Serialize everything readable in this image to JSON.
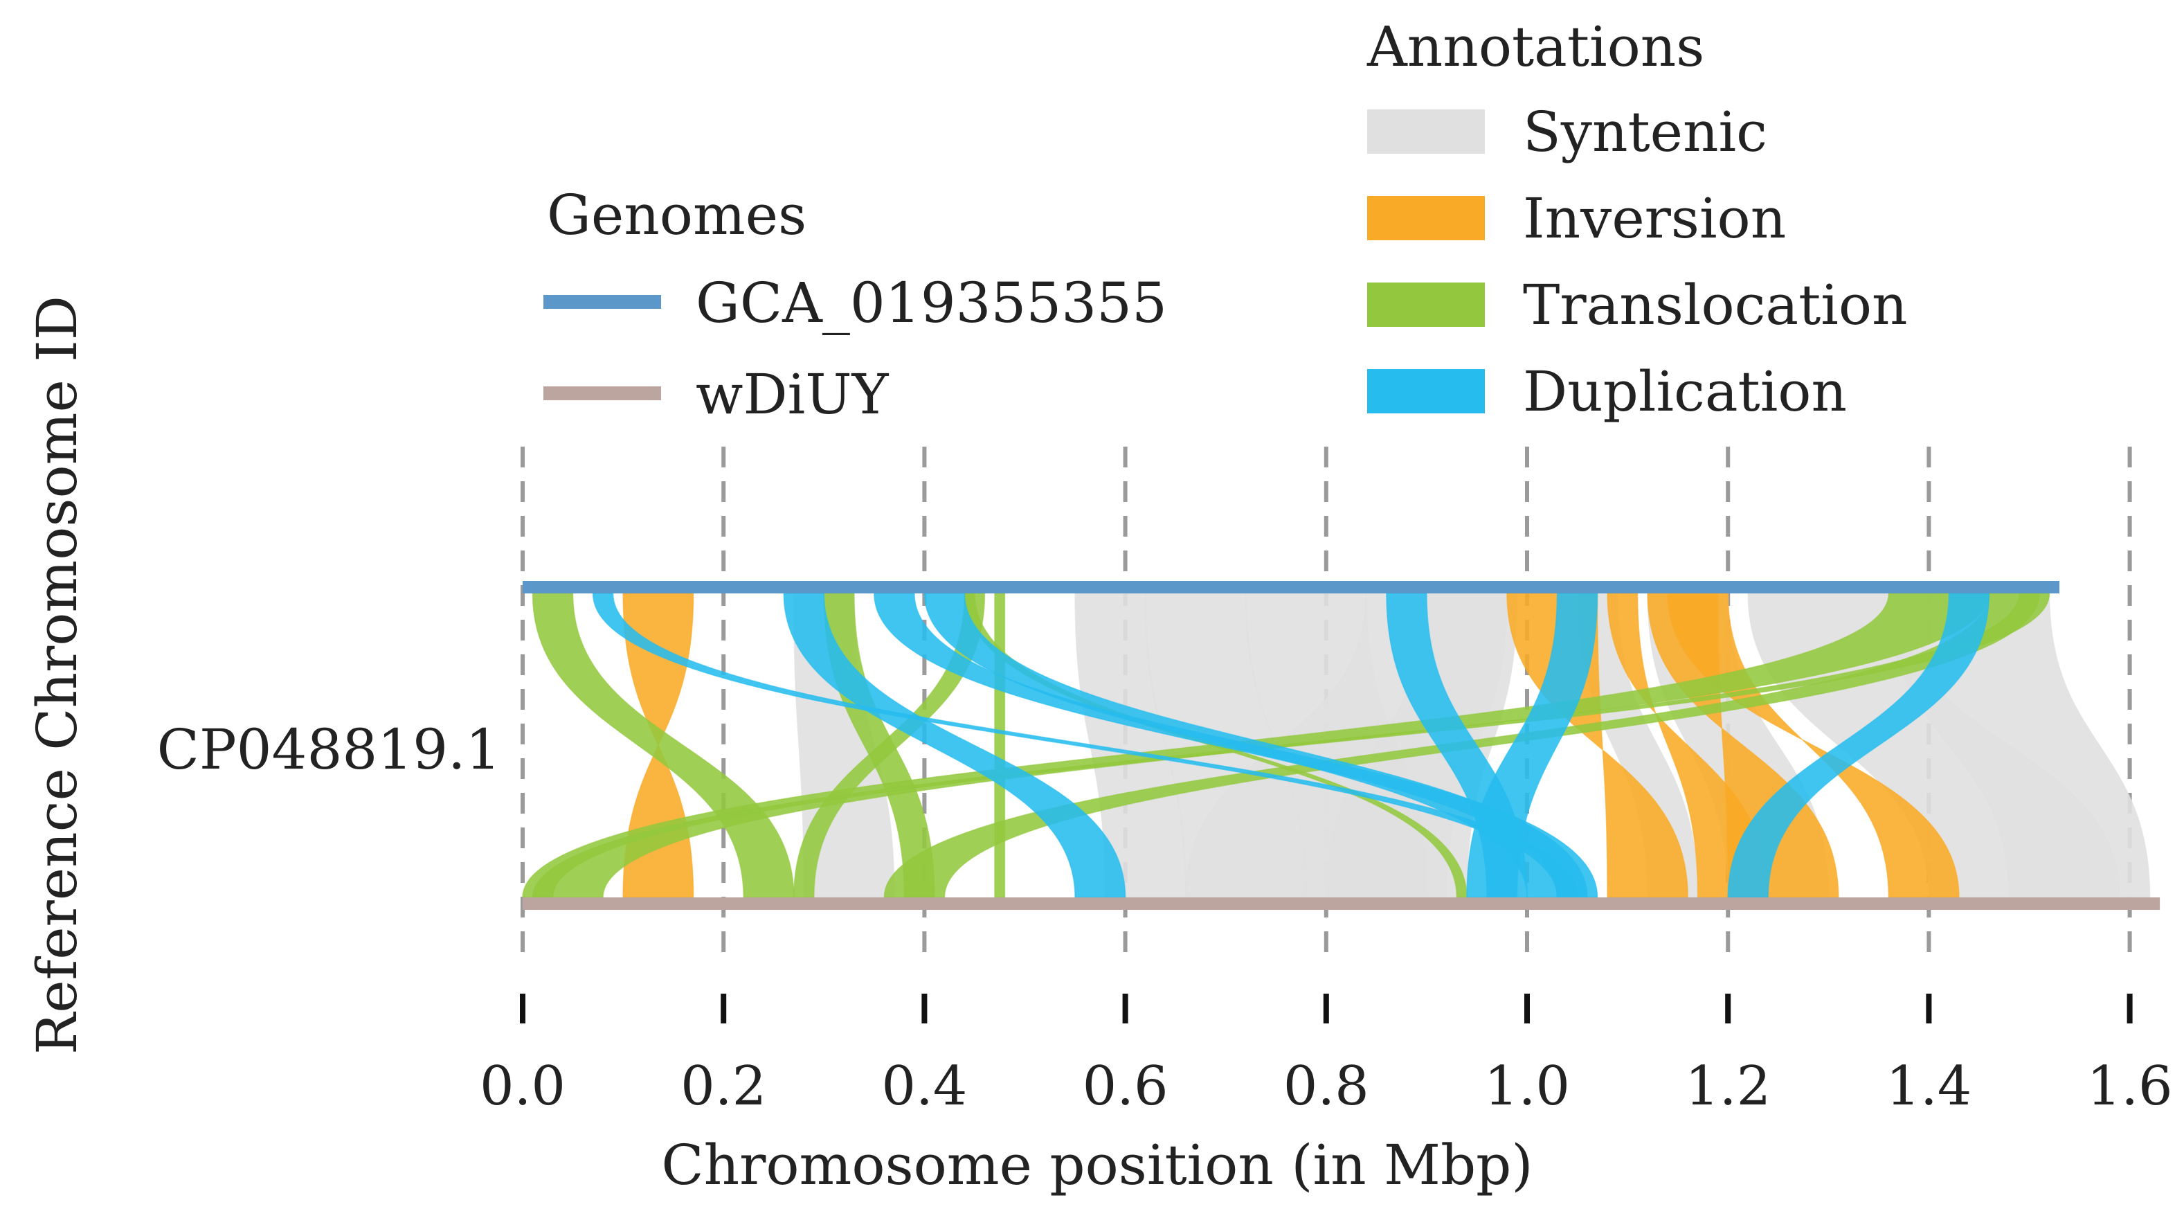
{
  "chart_data": {
    "type": "synteny",
    "xlabel": "Chromosome position (in Mbp)",
    "ylabel": "Reference Chromosome ID",
    "chromosome_id": "CP048819.1",
    "xlim": [
      0.0,
      1.62
    ],
    "ticks": [
      0.0,
      0.2,
      0.4,
      0.6,
      0.8,
      1.0,
      1.2,
      1.4,
      1.6
    ],
    "tick_labels": [
      "0.0",
      "0.2",
      "0.4",
      "0.6",
      "0.8",
      "1.0",
      "1.2",
      "1.4",
      "1.6"
    ],
    "genomes_legend": {
      "title": "Genomes",
      "items": [
        {
          "name": "GCA_019355355",
          "color": "#5b97c9",
          "length_mbp": 1.53
        },
        {
          "name": "wDiUY",
          "color": "#bca59e",
          "length_mbp": 1.63
        }
      ]
    },
    "annotations_legend": {
      "title": "Annotations",
      "items": [
        {
          "name": "Syntenic",
          "color": "#e0e0e0"
        },
        {
          "name": "Inversion",
          "color": "#f9aa26"
        },
        {
          "name": "Translocation",
          "color": "#93c83e"
        },
        {
          "name": "Duplication",
          "color": "#26bcee"
        }
      ]
    },
    "links": [
      {
        "type": "Syntenic",
        "top": [
          0.27,
          0.33
        ],
        "bottom": [
          0.28,
          0.37
        ]
      },
      {
        "type": "Syntenic",
        "top": [
          0.55,
          0.62
        ],
        "bottom": [
          0.58,
          0.66
        ]
      },
      {
        "type": "Syntenic",
        "top": [
          0.62,
          0.72
        ],
        "bottom": [
          0.66,
          0.78
        ]
      },
      {
        "type": "Syntenic",
        "top": [
          0.72,
          0.84
        ],
        "bottom": [
          0.78,
          0.9
        ]
      },
      {
        "type": "Syntenic",
        "top": [
          0.84,
          0.98
        ],
        "bottom": [
          0.66,
          0.92
        ]
      },
      {
        "type": "Syntenic",
        "top": [
          0.9,
          0.99
        ],
        "bottom": [
          0.8,
          0.94
        ]
      },
      {
        "type": "Syntenic",
        "top": [
          1.05,
          1.09
        ],
        "bottom": [
          1.12,
          1.17
        ]
      },
      {
        "type": "Syntenic",
        "top": [
          1.12,
          1.2
        ],
        "bottom": [
          1.2,
          1.3
        ]
      },
      {
        "type": "Syntenic",
        "top": [
          1.22,
          1.37
        ],
        "bottom": [
          1.4,
          1.59
        ]
      },
      {
        "type": "Syntenic",
        "top": [
          1.36,
          1.52
        ],
        "bottom": [
          1.48,
          1.62
        ]
      },
      {
        "type": "Inversion",
        "top": [
          0.1,
          0.17
        ],
        "bottom": [
          0.17,
          0.1
        ]
      },
      {
        "type": "Inversion",
        "top": [
          0.98,
          1.07
        ],
        "bottom": [
          1.16,
          1.08
        ]
      },
      {
        "type": "Inversion",
        "top": [
          1.12,
          1.19
        ],
        "bottom": [
          1.31,
          1.2
        ]
      },
      {
        "type": "Inversion",
        "top": [
          1.14,
          1.2
        ],
        "bottom": [
          1.43,
          1.36
        ]
      },
      {
        "type": "Inversion",
        "top": [
          1.08,
          1.11
        ],
        "bottom": [
          1.24,
          1.17
        ]
      },
      {
        "type": "Translocation",
        "top": [
          0.01,
          0.05
        ],
        "bottom": [
          0.22,
          0.27
        ]
      },
      {
        "type": "Translocation",
        "top": [
          0.3,
          0.33
        ],
        "bottom": [
          0.38,
          0.41
        ]
      },
      {
        "type": "Translocation",
        "top": [
          0.44,
          0.46
        ],
        "bottom": [
          0.27,
          0.29
        ]
      },
      {
        "type": "Translocation",
        "top": [
          0.44,
          0.45
        ],
        "bottom": [
          0.93,
          0.94
        ]
      },
      {
        "type": "Translocation",
        "top": [
          0.47,
          0.48
        ],
        "bottom": [
          0.47,
          0.48
        ]
      },
      {
        "type": "Translocation",
        "top": [
          1.36,
          1.46
        ],
        "bottom": [
          0.0,
          0.08
        ]
      },
      {
        "type": "Translocation",
        "top": [
          1.46,
          1.51
        ],
        "bottom": [
          0.36,
          0.42
        ]
      },
      {
        "type": "Translocation",
        "top": [
          1.49,
          1.52
        ],
        "bottom": [
          0.01,
          0.03
        ]
      },
      {
        "type": "Duplication",
        "top": [
          0.07,
          0.09
        ],
        "bottom": [
          1.03,
          1.05
        ]
      },
      {
        "type": "Duplication",
        "top": [
          0.26,
          0.3
        ],
        "bottom": [
          0.55,
          0.6
        ]
      },
      {
        "type": "Duplication",
        "top": [
          0.35,
          0.39
        ],
        "bottom": [
          1.03,
          1.07
        ]
      },
      {
        "type": "Duplication",
        "top": [
          0.4,
          0.44
        ],
        "bottom": [
          1.0,
          1.06
        ]
      },
      {
        "type": "Duplication",
        "top": [
          0.86,
          0.9
        ],
        "bottom": [
          0.96,
          1.0
        ]
      },
      {
        "type": "Duplication",
        "top": [
          1.03,
          1.07
        ],
        "bottom": [
          0.94,
          0.99
        ]
      },
      {
        "type": "Duplication",
        "top": [
          1.42,
          1.46
        ],
        "bottom": [
          1.2,
          1.24
        ]
      }
    ]
  }
}
